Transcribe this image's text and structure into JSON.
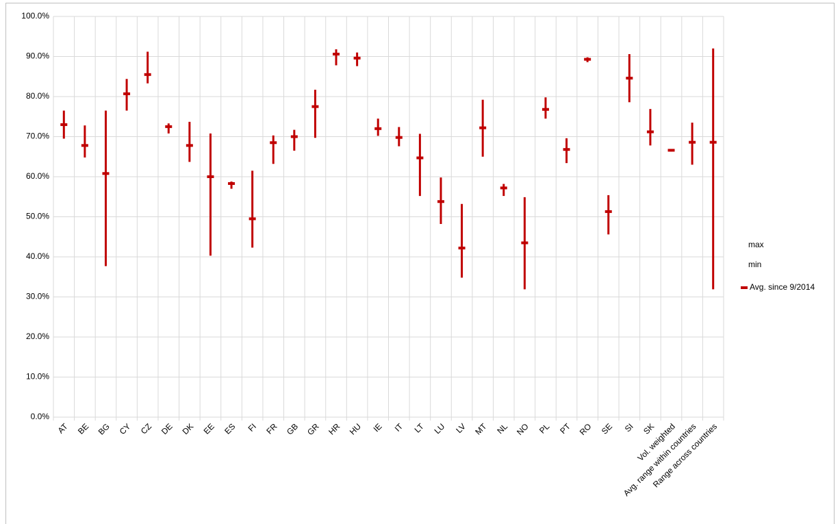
{
  "chart_data": {
    "type": "range",
    "categories": [
      "AT",
      "BE",
      "BG",
      "CY",
      "CZ",
      "DE",
      "DK",
      "EE",
      "ES",
      "FI",
      "FR",
      "GB",
      "GR",
      "HR",
      "HU",
      "IE",
      "IT",
      "LT",
      "LU",
      "LV",
      "MT",
      "NL",
      "NO",
      "PL",
      "PT",
      "RO",
      "SE",
      "SI",
      "SK",
      "Vol. weighted",
      "Avg. range within countries",
      "Range across countries"
    ],
    "series": [
      {
        "name": "max",
        "color": "#c00000",
        "values": [
          76.5,
          72.8,
          76.5,
          84.4,
          91.2,
          73.3,
          73.7,
          70.8,
          58.8,
          61.5,
          70.3,
          71.7,
          81.7,
          91.8,
          91.0,
          74.5,
          72.4,
          70.7,
          59.8,
          53.2,
          79.2,
          58.2,
          54.9,
          79.8,
          69.6,
          89.8,
          55.4,
          90.6,
          76.9,
          66.8,
          73.5,
          92.0
        ]
      },
      {
        "name": "min",
        "color": "#c00000",
        "values": [
          69.5,
          64.8,
          37.7,
          76.5,
          83.3,
          70.8,
          63.7,
          40.3,
          57.0,
          42.3,
          63.2,
          66.5,
          69.7,
          87.8,
          87.6,
          70.2,
          67.6,
          55.2,
          48.2,
          34.8,
          65.0,
          55.2,
          31.9,
          74.5,
          63.4,
          88.6,
          45.6,
          78.6,
          67.8,
          66.3,
          63.0,
          31.9
        ]
      },
      {
        "name": "Avg. since 9/2014",
        "color": "#c00000",
        "values": [
          73.0,
          67.8,
          60.8,
          80.7,
          85.5,
          72.5,
          67.8,
          60.0,
          58.3,
          49.5,
          68.5,
          70.0,
          77.5,
          90.6,
          89.6,
          72.0,
          69.8,
          64.7,
          53.8,
          42.2,
          72.2,
          57.2,
          43.5,
          76.8,
          66.8,
          89.3,
          51.3,
          84.6,
          71.2,
          66.6,
          68.6,
          68.6
        ]
      }
    ],
    "ylim": [
      0,
      100
    ],
    "yticks": [
      {
        "value": 0,
        "label": "0.0%"
      },
      {
        "value": 10,
        "label": "10.0%"
      },
      {
        "value": 20,
        "label": "20.0%"
      },
      {
        "value": 30,
        "label": "30.0%"
      },
      {
        "value": 40,
        "label": "40.0%"
      },
      {
        "value": 50,
        "label": "50.0%"
      },
      {
        "value": 60,
        "label": "60.0%"
      },
      {
        "value": 70,
        "label": "70.0%"
      },
      {
        "value": 80,
        "label": "80.0%"
      },
      {
        "value": 90,
        "label": "90.0%"
      },
      {
        "value": 100,
        "label": "100.0%"
      }
    ],
    "grid": true
  }
}
